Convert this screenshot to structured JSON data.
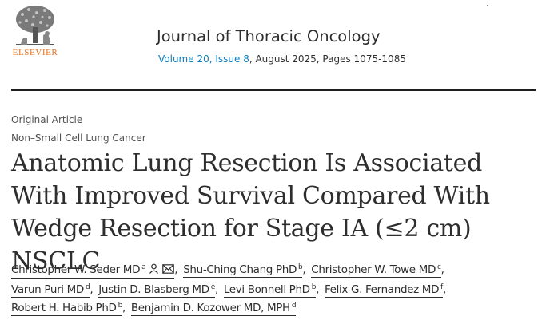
{
  "publisher": {
    "logo_text": "ELSEVIER",
    "logo_icon": "elsevier-tree-logo",
    "accent_color": "#e9711c"
  },
  "journal": {
    "title": "Journal of Thoracic Oncology",
    "issue_link": "Volume 20, Issue 8",
    "issue_details": ", August 2025, Pages 1075-1085",
    "link_color": "#0c7dbb"
  },
  "article": {
    "type": "Original Article",
    "category": "Non–Small Cell Lung Cancer",
    "title": "Anatomic Lung Resection Is Associated With Improved Survival Compared With Wedge Resection for Stage IA (≤2 cm) NSCLC"
  },
  "authors": [
    {
      "name": "Christopher W. Seder MD",
      "affiliation": "a",
      "icons": [
        "person-icon",
        "mail-icon"
      ]
    },
    {
      "name": "Shu-Ching Chang PhD",
      "affiliation": "b"
    },
    {
      "name": "Christopher W. Towe MD",
      "affiliation": "c"
    },
    {
      "name": "Varun Puri MD",
      "affiliation": "d"
    },
    {
      "name": "Justin D. Blasberg MD",
      "affiliation": "e"
    },
    {
      "name": "Levi Bonnell PhD",
      "affiliation": "b"
    },
    {
      "name": "Felix G. Fernandez MD",
      "affiliation": "f"
    },
    {
      "name": "Robert H. Habib PhD",
      "affiliation": "b"
    },
    {
      "name": "Benjamin D. Kozower MD, MPH",
      "affiliation": "d"
    }
  ],
  "separator": ","
}
